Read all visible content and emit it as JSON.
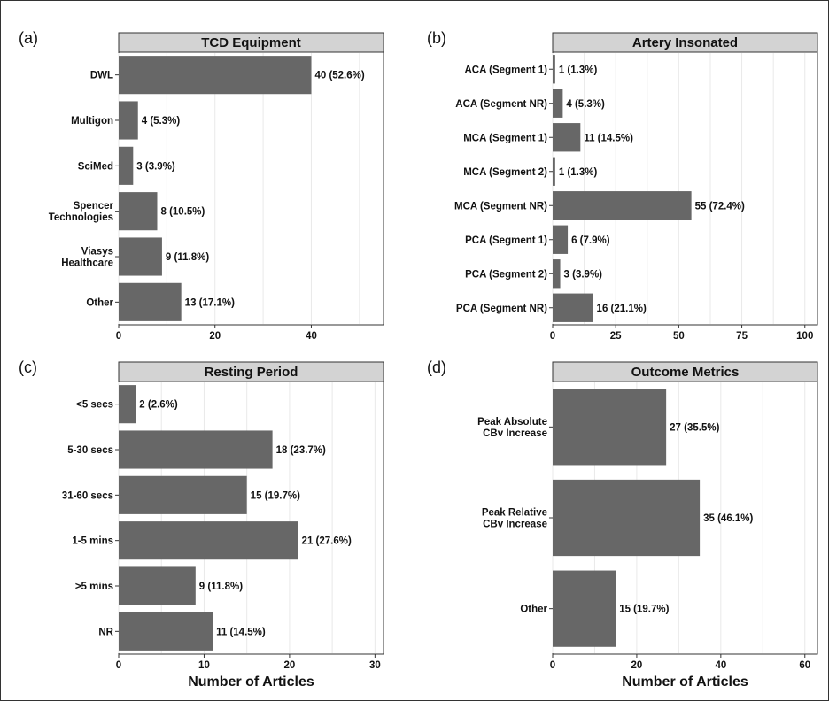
{
  "colors": {
    "bar": "#676767",
    "strip": "#d3d3d3",
    "grid": "#e9e9e9",
    "text": "#111111"
  },
  "chart_data": [
    {
      "panel_label": "(a)",
      "title": "TCD Equipment",
      "type": "bar",
      "orientation": "horizontal",
      "categories": [
        "DWL",
        "Multigon",
        "SciMed",
        "Spencer\nTechnologies",
        "Viasys\nHealthcare",
        "Other"
      ],
      "values": [
        40,
        4,
        3,
        8,
        9,
        13
      ],
      "data_labels": [
        "40 (52.6%)",
        "4 (5.3%)",
        "3 (3.9%)",
        "8 (10.5%)",
        "9 (11.8%)",
        "13 (17.1%)"
      ],
      "xlim": [
        0,
        55
      ],
      "xticks": [
        0,
        20,
        40
      ],
      "xlabel": "",
      "grid": true
    },
    {
      "panel_label": "(b)",
      "title": "Artery Insonated",
      "type": "bar",
      "orientation": "horizontal",
      "categories": [
        "ACA (Segment 1)",
        "ACA (Segment NR)",
        "MCA (Segment 1)",
        "MCA (Segment 2)",
        "MCA (Segment NR)",
        "PCA (Segment 1)",
        "PCA (Segment 2)",
        "PCA (Segment NR)"
      ],
      "values": [
        1,
        4,
        11,
        1,
        55,
        6,
        3,
        16
      ],
      "data_labels": [
        "1 (1.3%)",
        "4 (5.3%)",
        "11 (14.5%)",
        "1 (1.3%)",
        "55 (72.4%)",
        "6 (7.9%)",
        "3 (3.9%)",
        "16 (21.1%)"
      ],
      "xlim": [
        0,
        105
      ],
      "xticks": [
        0,
        25,
        50,
        75,
        100
      ],
      "xlabel": "",
      "grid": true
    },
    {
      "panel_label": "(c)",
      "title": "Resting Period",
      "type": "bar",
      "orientation": "horizontal",
      "categories": [
        "<5 secs",
        "5-30 secs",
        "31-60 secs",
        "1-5 mins",
        ">5 mins",
        "NR"
      ],
      "values": [
        2,
        18,
        15,
        21,
        9,
        11
      ],
      "data_labels": [
        "2 (2.6%)",
        "18 (23.7%)",
        "15 (19.7%)",
        "21 (27.6%)",
        "9 (11.8%)",
        "11 (14.5%)"
      ],
      "xlim": [
        0,
        31
      ],
      "xticks": [
        0,
        10,
        20,
        30
      ],
      "xlabel": "Number of Articles",
      "grid": true
    },
    {
      "panel_label": "(d)",
      "title": "Outcome Metrics",
      "type": "bar",
      "orientation": "horizontal",
      "categories": [
        "Peak Absolute\nCBv Increase",
        "Peak Relative\nCBv Increase",
        "Other"
      ],
      "values": [
        27,
        35,
        15
      ],
      "data_labels": [
        "27 (35.5%)",
        "35 (46.1%)",
        "15 (19.7%)"
      ],
      "xlim": [
        0,
        63
      ],
      "xticks": [
        0,
        20,
        40,
        60
      ],
      "xlabel": "Number of Articles",
      "grid": true
    }
  ]
}
